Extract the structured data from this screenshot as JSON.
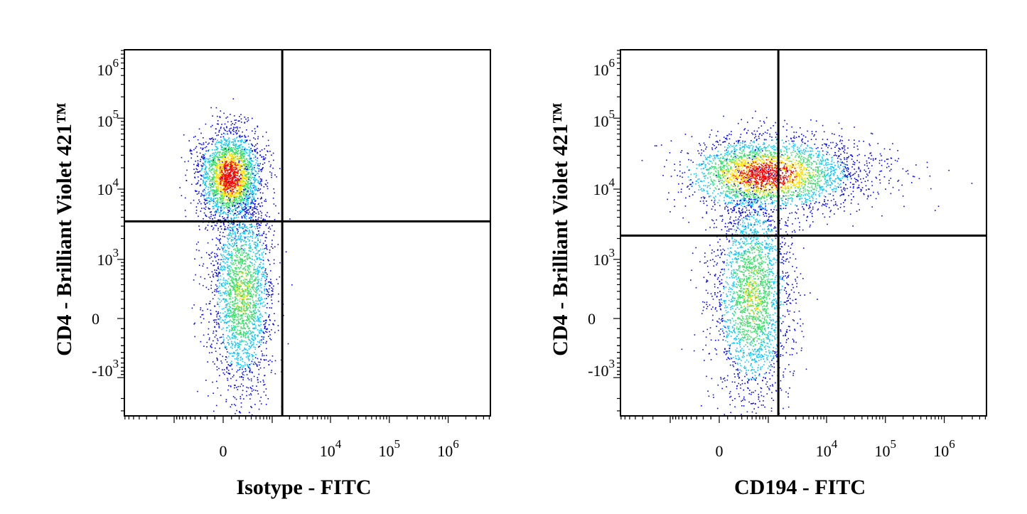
{
  "chart_data": [
    {
      "type": "scatter",
      "subtype": "flow-cytometry-density-dot-plot",
      "xlabel": "Isotype - FITC",
      "ylabel": "CD4 - Brilliant Violet 421™",
      "x_scale": "biexponential",
      "y_scale": "biexponential",
      "x_ticks": [
        "0",
        "10^4",
        "10^5",
        "10^6"
      ],
      "y_ticks": [
        "10^6",
        "10^5",
        "10^4",
        "10^3",
        "0",
        "-10^3"
      ],
      "xlim": [
        -3000,
        2000000
      ],
      "ylim": [
        -5000,
        1500000
      ],
      "grid": false,
      "quadrant_gate": {
        "x": 1500,
        "y": 3500
      },
      "populations": [
        {
          "name": "",
          "x_center": 100,
          "y_center": 15000,
          "n_points": 2600
        },
        {
          "name": "",
          "x_center": 300,
          "y_center": 500,
          "n_points": 2400
        }
      ]
    },
    {
      "type": "scatter",
      "subtype": "flow-cytometry-density-dot-plot",
      "xlabel": "CD194 - FITC",
      "ylabel": "CD4 - Brilliant Violet 421™",
      "x_scale": "biexponential",
      "y_scale": "biexponential",
      "x_ticks": [
        "0",
        "10^4",
        "10^5",
        "10^6"
      ],
      "y_ticks": [
        "10^6",
        "10^5",
        "10^4",
        "10^3",
        "0",
        "-10^3"
      ],
      "xlim": [
        -3000,
        2000000
      ],
      "ylim": [
        -5000,
        1500000
      ],
      "grid": false,
      "quadrant_gate": {
        "x": 1500,
        "y": 2200
      },
      "populations": [
        {
          "name": "",
          "x_center": 800,
          "y_center": 15000,
          "n_points": 3200
        },
        {
          "name": "",
          "x_center": 500,
          "y_center": 400,
          "n_points": 2600
        }
      ]
    }
  ],
  "colors": {
    "density_low": "#0000ff",
    "density_mid": "#00c8ff",
    "density_midhigh": "#30e060",
    "density_high": "#ffe000",
    "density_max": "#ff0000",
    "axis": "#000000"
  }
}
